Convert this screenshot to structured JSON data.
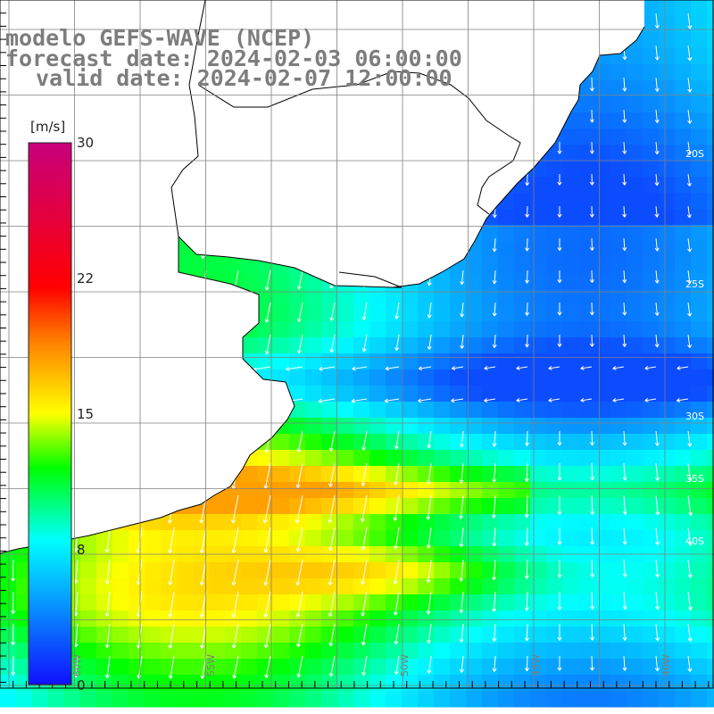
{
  "title": {
    "model": "modelo GEFS-WAVE (NCEP)",
    "forecast": "forecast date: 2024-02-03 06:00:00",
    "valid": "valid date: 2024-02-07 12:00:00"
  },
  "colorbar": {
    "unit": "[m/s]",
    "ticks": [
      "30",
      "22",
      "15",
      "8",
      "0"
    ],
    "stops": [
      {
        "value": 0,
        "color": "#1010ff"
      },
      {
        "value": 8,
        "color": "#00ffff"
      },
      {
        "value": 12,
        "color": "#00ff00"
      },
      {
        "value": 15,
        "color": "#ffff00"
      },
      {
        "value": 19,
        "color": "#ff8000"
      },
      {
        "value": 22,
        "color": "#ff0000"
      },
      {
        "value": 30,
        "color": "#c8007d"
      }
    ]
  },
  "grid": {
    "lon_labels": [
      "60W",
      "55W",
      "50W",
      "45W",
      "40W"
    ],
    "lat_labels": [
      "20S",
      "25S",
      "30S",
      "35S",
      "40S"
    ]
  },
  "colors": {
    "land": "#ffffff",
    "coast": "#000000",
    "gridline": "#808080",
    "arrow": "#ffffff",
    "title_text": "#7d7d7d"
  }
}
